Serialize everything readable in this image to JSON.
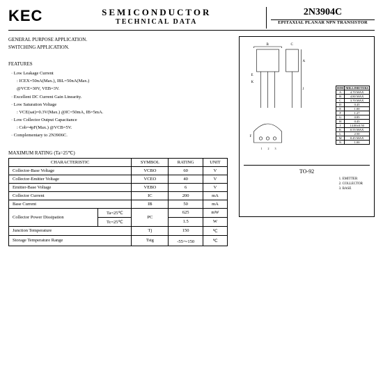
{
  "header": {
    "logo": "KEC",
    "title1": "SEMICONDUCTOR",
    "title2": "TECHNICAL DATA",
    "part": "2N3904C",
    "desc": "EPITAXIAL PLANAR NPN TRANSISTOR"
  },
  "applications": {
    "line1": "GENERAL PURPOSE APPLICATION.",
    "line2": "SWITCHING APPLICATION."
  },
  "features": {
    "heading": "FEATURES",
    "f1": "· Low Leakage Current",
    "f1a": ": ICEX=50nA(Max.), IBL=50nA(Max.)",
    "f1b": "  @VCE=30V, VEB=3V.",
    "f2": "· Excellent DC Current Gain Linearity.",
    "f3": "· Low Saturation Voltage",
    "f3a": ": VCE(sat)=0.3V(Max.)  @IC=50mA, IB=5mA.",
    "f4": "· Low Collector Output Capacitance",
    "f4a": ": Cob=4pF(Max.) @VCB=5V.",
    "f5": "· Complementary to 2N3906C."
  },
  "package": {
    "name": "TO-92",
    "pins": {
      "p1": "1. EMITTER",
      "p2": "2. COLLECTOR",
      "p3": "3. BASE"
    },
    "dim_header": {
      "c1": "DIM",
      "c2": "MILLIMETERS"
    },
    "dims": [
      {
        "d": "A",
        "v": "4.70 MAX"
      },
      {
        "d": "B",
        "v": "4.80 MAX"
      },
      {
        "d": "C",
        "v": "3.70 MAX"
      },
      {
        "d": "D",
        "v": "0.45"
      },
      {
        "d": "E",
        "v": "1.00"
      },
      {
        "d": "F",
        "v": "1.27"
      },
      {
        "d": "G",
        "v": "0.85"
      },
      {
        "d": "H",
        "v": "0.45"
      },
      {
        "d": "J",
        "v": "14.00±0.50"
      },
      {
        "d": "K",
        "v": "0.55 MAX"
      },
      {
        "d": "L",
        "v": "2.50"
      },
      {
        "d": "M",
        "v": "0.45 MAX"
      },
      {
        "d": "N",
        "v": "1.00"
      }
    ]
  },
  "maxrating": {
    "heading": "MAXIMUM RATING  (Ta=25℃)",
    "cols": {
      "c1": "CHARACTERISTIC",
      "c2": "SYMBOL",
      "c3": "RATING",
      "c4": "UNIT"
    },
    "rows": [
      {
        "ch": "Collector-Base Voltage",
        "sym": "VCBO",
        "rat": "60",
        "unit": "V"
      },
      {
        "ch": "Collector-Emitter Voltage",
        "sym": "VCEO",
        "rat": "40",
        "unit": "V"
      },
      {
        "ch": "Emitter-Base Voltage",
        "sym": "VEBO",
        "rat": "6",
        "unit": "V"
      },
      {
        "ch": "Collector Current",
        "sym": "IC",
        "rat": "200",
        "unit": "mA"
      },
      {
        "ch": "Base Current",
        "sym": "IB",
        "rat": "50",
        "unit": "mA"
      }
    ],
    "power": {
      "ch": "Collector Power Dissipation",
      "ta": "Ta=25℃",
      "ta_rat": "625",
      "ta_unit": "mW",
      "tc": "Tc=25℃",
      "tc_rat": "1.5",
      "tc_unit": "W",
      "sym": "PC"
    },
    "tj": {
      "ch": "Junction Temperature",
      "sym": "Tj",
      "rat": "150",
      "unit": "℃"
    },
    "tstg": {
      "ch": "Storage Temperature Range",
      "sym": "Tstg",
      "rat": "-55～150",
      "unit": "℃"
    }
  }
}
